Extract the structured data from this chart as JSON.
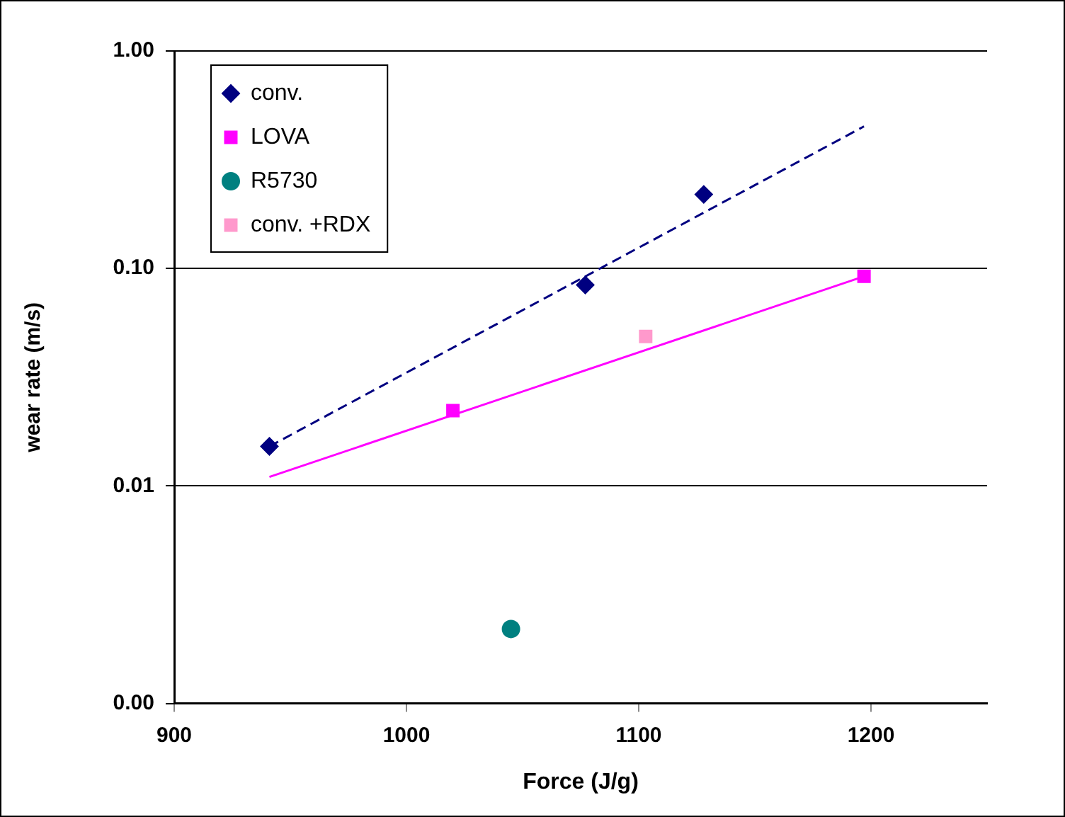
{
  "chart_data": {
    "type": "scatter",
    "xlabel": "Force (J/g)",
    "ylabel": "wear rate (m/s)",
    "log": "y",
    "xlim": [
      900,
      1250
    ],
    "xticks": [
      900,
      1000,
      1100,
      1200
    ],
    "ylim": [
      0.001,
      1
    ],
    "yticks": [
      {
        "value": 0.001,
        "label": "0.00"
      },
      {
        "value": 0.01,
        "label": "0.01"
      },
      {
        "value": 0.1,
        "label": "0.10"
      },
      {
        "value": 1,
        "label": "1.00"
      }
    ],
    "grid": "y",
    "legend": "top left",
    "series": [
      {
        "name": "conv.",
        "color": "#000080",
        "marker": "diamond",
        "x": [
          941,
          1077,
          1128
        ],
        "values": [
          0.0152,
          0.084,
          0.219
        ]
      },
      {
        "name": "LOVA",
        "color": "#ff00ff",
        "marker": "square",
        "x": [
          1020,
          1197
        ],
        "values": [
          0.0222,
          0.092
        ]
      },
      {
        "name": "R5730",
        "color": "#008080",
        "marker": "circle",
        "x": [
          1045
        ],
        "values": [
          0.0022
        ]
      },
      {
        "name": "conv. +RDX",
        "color": "#ff99cc",
        "marker": "square",
        "x": [
          1103
        ],
        "values": [
          0.0487
        ]
      },
      {
        "type": "line",
        "color": "#000080",
        "line_style": "dashed",
        "x": [
          941,
          1197
        ],
        "values": [
          0.0152,
          0.45
        ]
      },
      {
        "type": "line",
        "color": "#ff00ff",
        "line_style": "solid",
        "x": [
          941,
          1197
        ],
        "values": [
          0.011,
          0.092
        ]
      }
    ]
  }
}
